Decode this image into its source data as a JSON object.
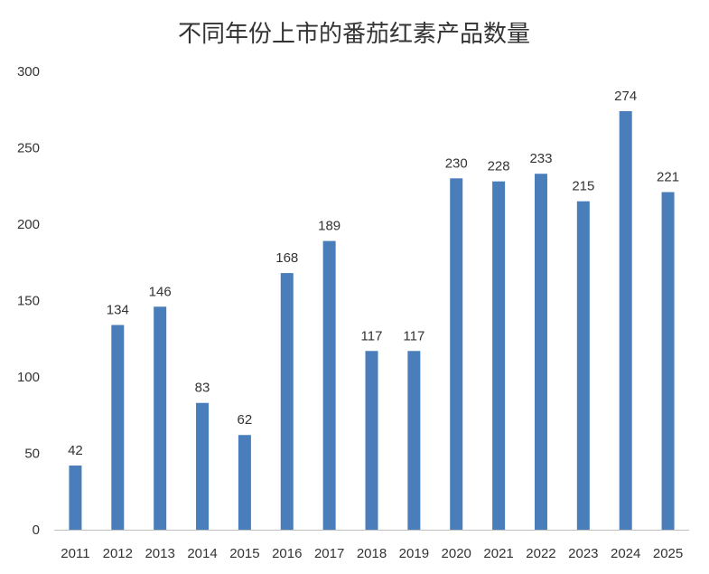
{
  "chart_data": {
    "type": "bar",
    "title": "不同年份上市的番茄红素产品数量",
    "xlabel": "",
    "ylabel": "",
    "categories": [
      "2011",
      "2012",
      "2013",
      "2014",
      "2015",
      "2016",
      "2017",
      "2018",
      "2019",
      "2020",
      "2021",
      "2022",
      "2023",
      "2024",
      "2025"
    ],
    "values": [
      42,
      134,
      146,
      83,
      62,
      168,
      189,
      117,
      117,
      230,
      228,
      233,
      215,
      274,
      221
    ],
    "ylim": [
      0,
      300
    ],
    "yticks": [
      0,
      50,
      100,
      150,
      200,
      250,
      300
    ],
    "grid": false,
    "legend": "none",
    "data_labels": true,
    "colors": {
      "bar": "#4A7EBB",
      "axis": "#BFBFBF",
      "text": "#333333"
    }
  }
}
